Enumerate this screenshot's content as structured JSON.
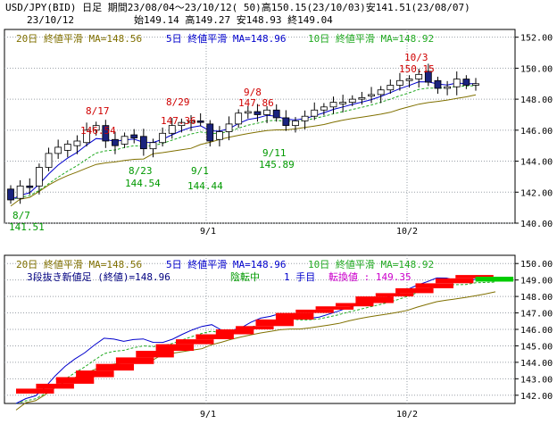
{
  "header": {
    "line1": "USD/JPY(BID) 日足 期間23/08/04～23/10/12( 50)高150.15(23/10/03)安141.51(23/08/07)",
    "date": "23/10/12",
    "ohlc": "始149.14 高149.27 安148.93 終149.04"
  },
  "legend_top": {
    "ma20": "20日 終値平滑 MA=148.56",
    "ma5": "5日 終値平滑 MA=148.96",
    "ma10": "10日 終値平滑 MA=148.92"
  },
  "legend_bottom": {
    "ma20": "20日 終値平滑 MA=148.56",
    "ma5": "5日 終値平滑 MA=148.96",
    "ma10": "10日 終値平滑 MA=148.92",
    "three_line": "3段抜き新値足 (終値)=148.96",
    "state": "陰転中",
    "count": "1 手目",
    "reversal": "転換値 : 149.35"
  },
  "colors": {
    "up_candle": "#ffffff",
    "down_candle": "#1a237e",
    "ma5": "#0000cc",
    "ma10": "#22aa22",
    "ma20": "#807000",
    "high_label": "#d00000",
    "low_label": "#009900",
    "up_brick": "#ff0000",
    "down_brick": "#00cc00",
    "grid": "#9aa0a8"
  },
  "chart_data": [
    {
      "type": "candlestick",
      "x_ticks": [
        "9/1",
        "10/2"
      ],
      "y_ticks": [
        "140.00",
        "142.00",
        "144.00",
        "146.00",
        "148.00",
        "150.00",
        "152.00"
      ],
      "ylim": [
        140,
        152.5
      ],
      "annotations_high": [
        {
          "date": "8/17",
          "value": "146.54"
        },
        {
          "date": "8/29",
          "value": "147.36"
        },
        {
          "date": "9/8",
          "value": "147.86"
        },
        {
          "date": "10/3",
          "value": "150.15"
        }
      ],
      "annotations_low": [
        {
          "date": "8/7",
          "value": "141.51"
        },
        {
          "date": "8/23",
          "value": "144.54"
        },
        {
          "date": "9/1",
          "value": "144.44"
        },
        {
          "date": "9/11",
          "value": "145.89"
        }
      ]
    },
    {
      "type": "three-line-break",
      "x_ticks": [
        "9/1",
        "10/2"
      ],
      "y_ticks": [
        "142.00",
        "143.00",
        "144.00",
        "145.00",
        "146.00",
        "147.00",
        "148.00",
        "149.00",
        "150.00"
      ],
      "ylim": [
        141.5,
        150.5
      ]
    }
  ]
}
